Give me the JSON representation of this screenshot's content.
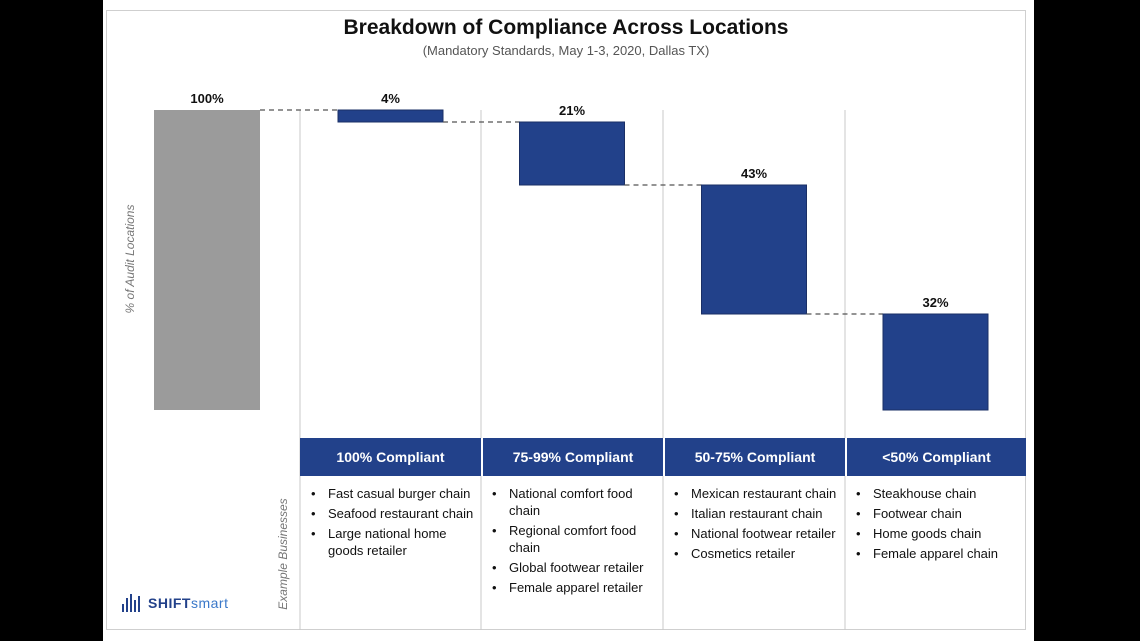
{
  "chart_data": {
    "type": "bar",
    "subtype": "waterfall",
    "title": "Breakdown of Compliance Across Locations",
    "subtitle": "(Mandatory Standards, May 1-3, 2020, Dallas TX)",
    "ylabel": "% of Audit Locations",
    "ylim": [
      0,
      100
    ],
    "total": {
      "value": 100,
      "label": "100%",
      "color": "#9b9b9b"
    },
    "steps": [
      {
        "category": "100% Compliant",
        "value": 4,
        "label": "4%"
      },
      {
        "category": "75-99% Compliant",
        "value": 21,
        "label": "21%"
      },
      {
        "category": "50-75% Compliant",
        "value": 43,
        "label": "43%"
      },
      {
        "category": "<50% Compliant",
        "value": 32,
        "label": "32%"
      }
    ],
    "bar_color": "#22418a",
    "connectors": "dashed"
  },
  "examples_label": "Example Businesses",
  "examples": [
    [
      "Fast casual burger chain",
      "Seafood restaurant chain",
      "Large national home goods retailer"
    ],
    [
      "National comfort food chain",
      "Regional comfort food chain",
      "Global footwear retailer",
      "Female apparel retailer"
    ],
    [
      "Mexican restaurant chain",
      "Italian restaurant chain",
      "National footwear retailer",
      "Cosmetics retailer"
    ],
    [
      "Steakhouse chain",
      "Footwear chain",
      "Home goods chain",
      "Female apparel chain"
    ]
  ],
  "logo": {
    "part1": "SHIFT",
    "part2": "smart"
  }
}
